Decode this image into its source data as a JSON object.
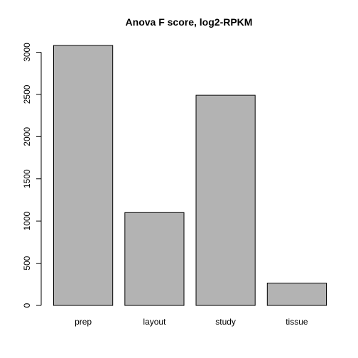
{
  "chart_data": {
    "type": "bar",
    "title": "Anova F score, log2-RPKM",
    "xlabel": "",
    "ylabel": "",
    "categories": [
      "prep",
      "layout",
      "study",
      "tissue"
    ],
    "values": [
      3080,
      1100,
      2490,
      265
    ],
    "ylim": [
      0,
      3000
    ],
    "yticks": [
      0,
      500,
      1000,
      1500,
      2000,
      2500,
      3000
    ],
    "bar_color": "#b3b3b3",
    "grid": false,
    "legend": "none"
  }
}
